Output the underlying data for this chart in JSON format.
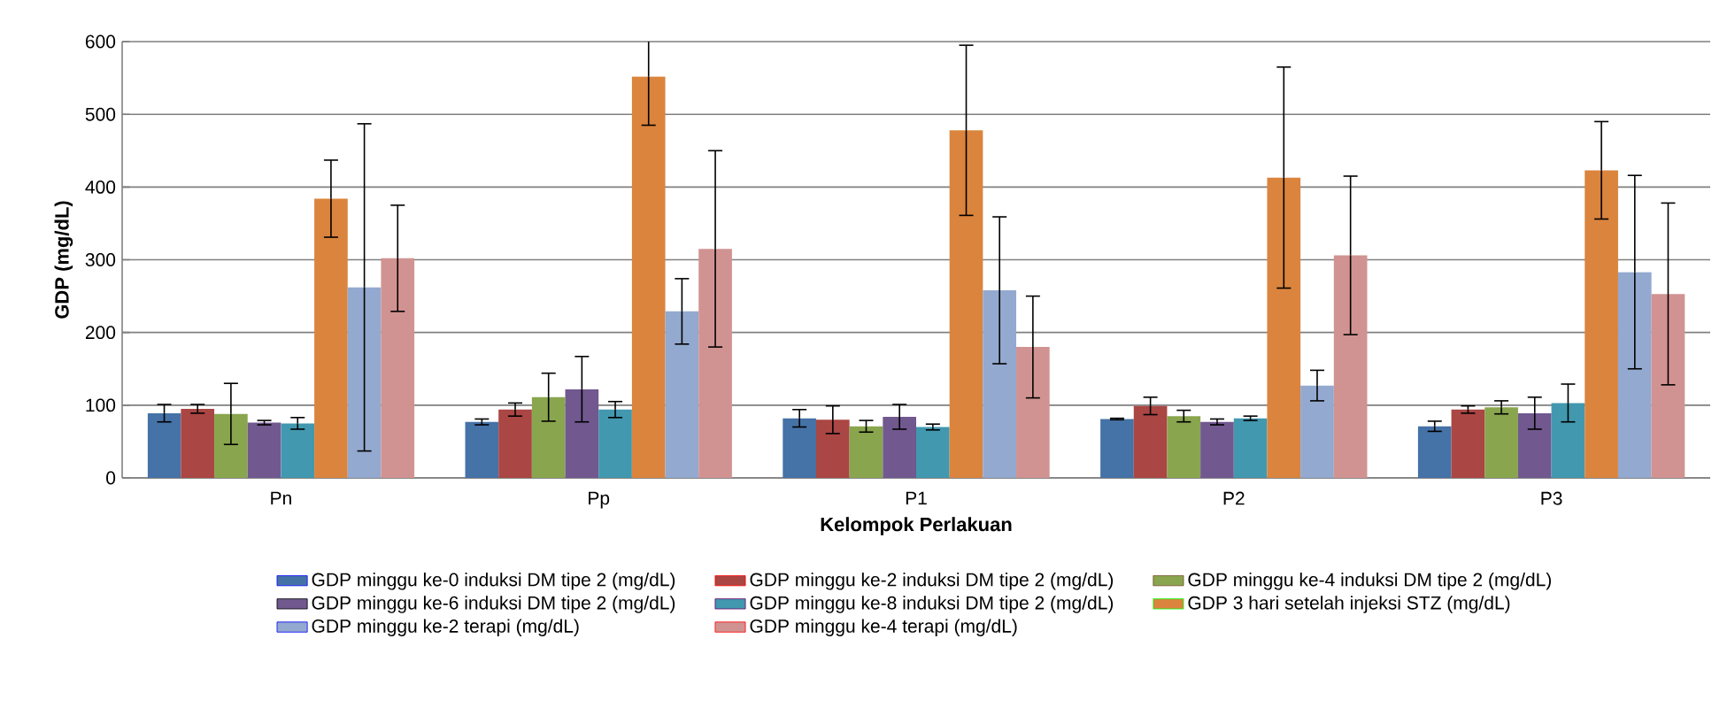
{
  "chart_data": {
    "type": "bar",
    "xlabel": "Kelompok Perlakuan",
    "ylabel": "GDP (mg/dL)",
    "categories": [
      "Pn",
      "Pp",
      "P1",
      "P2",
      "P3"
    ],
    "ylim": [
      0,
      600
    ],
    "yticks": [
      0,
      100,
      200,
      300,
      400,
      500,
      600
    ],
    "grid": "y",
    "legend": "bottom",
    "series": [
      {
        "name": "GDP minggu ke-0 induksi DM tipe 2 (mg/dL)",
        "color": "#4572a7",
        "values": [
          89,
          77,
          82,
          81,
          71
        ],
        "errors": [
          12,
          4,
          12,
          1,
          7
        ]
      },
      {
        "name": "GDP minggu ke-2 induksi DM tipe 2 (mg/dL)",
        "color": "#aa4643",
        "values": [
          95,
          94,
          80,
          99,
          94
        ],
        "errors": [
          6,
          9,
          19,
          12,
          5
        ]
      },
      {
        "name": "GDP minggu ke-4 induksi DM tipe 2 (mg/dL)",
        "color": "#89a54e",
        "values": [
          88,
          111,
          71,
          85,
          97
        ],
        "errors": [
          42,
          33,
          8,
          8,
          9
        ]
      },
      {
        "name": "GDP minggu ke-6 induksi DM tipe 2 (mg/dL)",
        "color": "#71588f",
        "values": [
          76,
          122,
          84,
          77,
          89
        ],
        "errors": [
          3,
          45,
          17,
          4,
          22
        ]
      },
      {
        "name": "GDP minggu ke-8 induksi DM tipe 2 (mg/dL)",
        "color": "#4198af",
        "values": [
          75,
          94,
          70,
          82,
          103
        ],
        "errors": [
          8,
          11,
          4,
          3,
          26
        ]
      },
      {
        "name": "GDP 3 hari setelah injeksi STZ (mg/dL)",
        "color": "#db843d",
        "values": [
          384,
          552,
          478,
          413,
          423
        ],
        "errors": [
          53,
          67,
          117,
          152,
          67
        ]
      },
      {
        "name": "GDP minggu ke-2 terapi (mg/dL)",
        "color": "#93a9cf",
        "values": [
          262,
          229,
          258,
          127,
          283
        ],
        "errors": [
          225,
          45,
          101,
          21,
          133
        ]
      },
      {
        "name": "GDP minggu ke-4 terapi (mg/dL)",
        "color": "#d19392",
        "values": [
          302,
          315,
          180,
          306,
          253
        ],
        "errors": [
          73,
          135,
          70,
          109,
          125
        ]
      }
    ]
  }
}
